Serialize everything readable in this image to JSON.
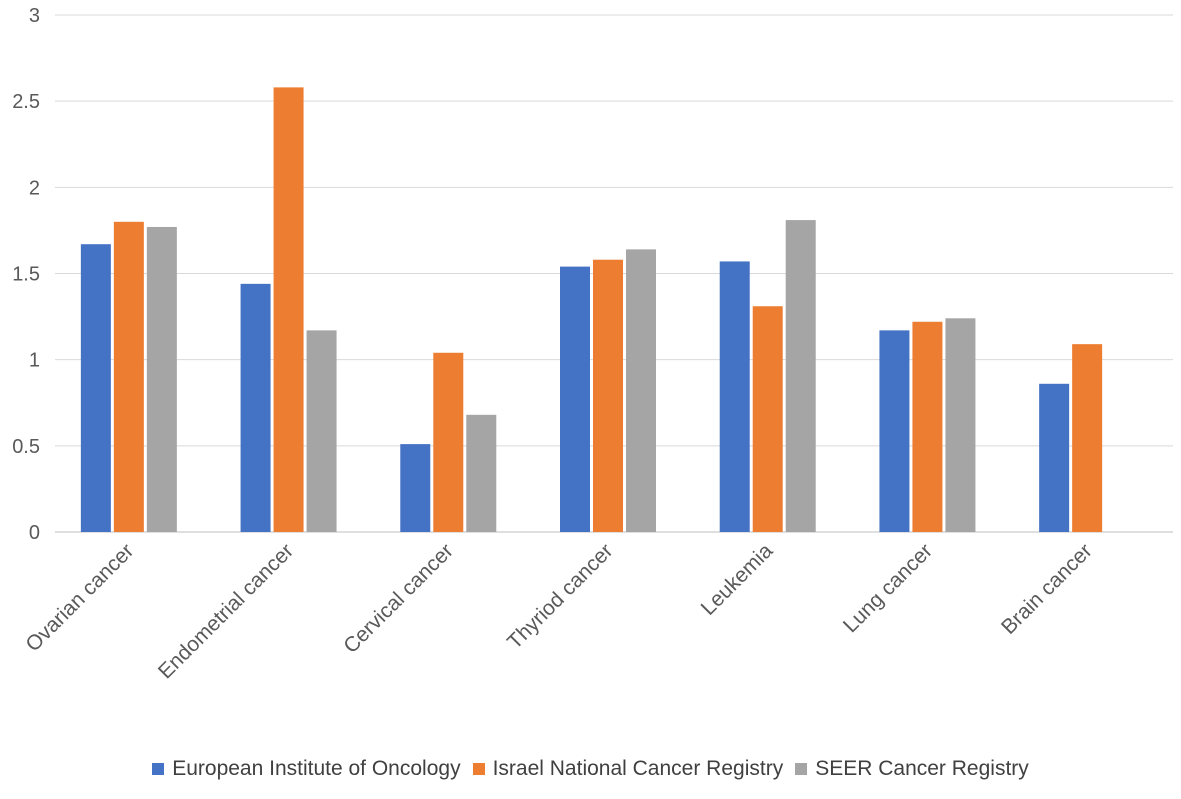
{
  "chart_data": {
    "type": "bar",
    "title": "",
    "xlabel": "",
    "ylabel": "",
    "ylim": [
      0,
      3
    ],
    "yticks": [
      "0",
      "0.5",
      "1",
      "1.5",
      "2",
      "2.5",
      "3"
    ],
    "grid": true,
    "legend_position": "bottom",
    "categories": [
      "Ovarian cancer",
      "Endometrial cancer",
      "Cervical cancer",
      "Thyriod cancer",
      "Leukemia",
      "Lung cancer",
      "Brain cancer"
    ],
    "series": [
      {
        "name": "European Institute of Oncology",
        "color": "#4472C4",
        "values": [
          1.67,
          1.44,
          0.51,
          1.54,
          1.57,
          1.17,
          0.86
        ]
      },
      {
        "name": "Israel National Cancer Registry",
        "color": "#ED7D31",
        "values": [
          1.8,
          2.58,
          1.04,
          1.58,
          1.31,
          1.22,
          1.09
        ]
      },
      {
        "name": "SEER Cancer Registry",
        "color": "#A5A5A5",
        "values": [
          1.77,
          1.17,
          0.68,
          1.64,
          1.81,
          1.24,
          null
        ]
      }
    ]
  }
}
